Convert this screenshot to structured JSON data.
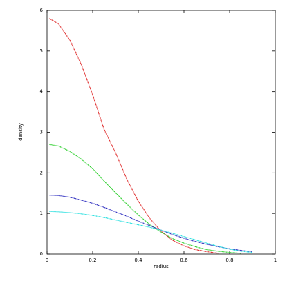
{
  "chart_data": {
    "type": "line",
    "xlabel": "radius",
    "ylabel": "density",
    "x": [
      0.01,
      0.05,
      0.1,
      0.15,
      0.2,
      0.25,
      0.3,
      0.35,
      0.4,
      0.45,
      0.5,
      0.55,
      0.6,
      0.65,
      0.7,
      0.75,
      0.8,
      0.85,
      0.9
    ],
    "series": [
      {
        "color": "#e03030",
        "values": [
          5.8,
          5.67,
          5.27,
          4.67,
          3.92,
          3.07,
          2.5,
          1.84,
          1.3,
          0.88,
          0.56,
          0.34,
          0.2,
          0.11,
          0.06,
          0.02,
          null,
          null,
          null
        ]
      },
      {
        "color": "#30d030",
        "values": [
          2.7,
          2.66,
          2.53,
          2.34,
          2.1,
          1.8,
          1.51,
          1.23,
          0.96,
          0.73,
          0.54,
          0.38,
          0.27,
          0.18,
          0.11,
          0.07,
          0.04,
          0.02,
          null
        ]
      },
      {
        "color": "#3030c0",
        "values": [
          1.45,
          1.44,
          1.4,
          1.33,
          1.25,
          1.15,
          1.04,
          0.93,
          0.81,
          0.7,
          0.59,
          0.48,
          0.39,
          0.31,
          0.24,
          0.18,
          0.13,
          0.09,
          0.06
        ]
      },
      {
        "color": "#30e0e0",
        "values": [
          1.05,
          1.04,
          1.02,
          0.99,
          0.95,
          0.9,
          0.84,
          0.78,
          0.72,
          0.66,
          0.59,
          0.51,
          0.43,
          0.35,
          0.27,
          0.19,
          0.12,
          0.07,
          0.04
        ]
      }
    ],
    "xlim": [
      0,
      1
    ],
    "xticks": [
      0,
      0.2,
      0.4,
      0.6,
      0.8,
      1
    ],
    "ylim": [
      0,
      6
    ],
    "yticks": [
      0,
      1,
      2,
      3,
      4,
      5,
      6
    ]
  }
}
